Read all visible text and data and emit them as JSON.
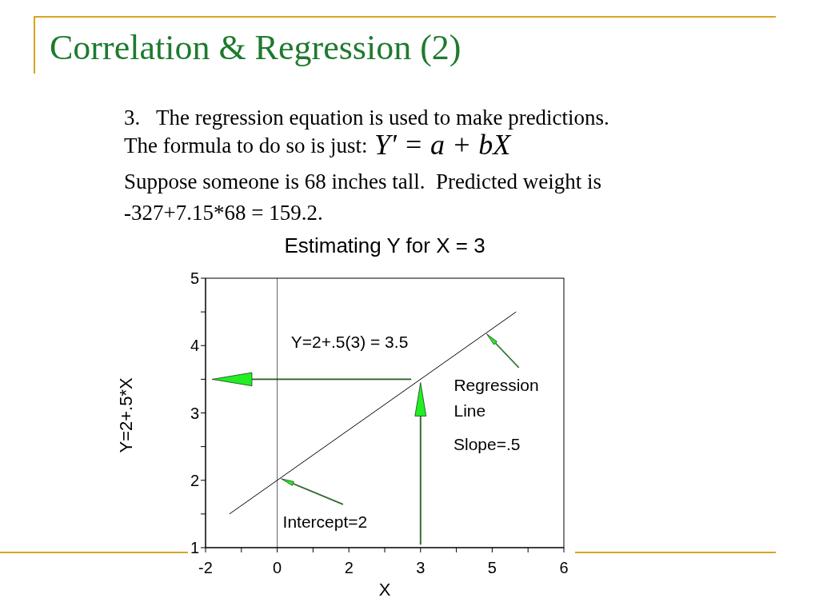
{
  "chart_data": {
    "type": "line",
    "title": "Estimating Y for X = 3",
    "xlabel": "X",
    "ylabel": "Y=2+.5*X",
    "x": [
      -1,
      5
    ],
    "series": [
      {
        "color": "#000000",
        "values": [
          1.5,
          4.5
        ]
      }
    ],
    "xlim": [
      -1.5,
      6
    ],
    "xticks": [
      {
        "value": -1.5,
        "label": "-2"
      },
      {
        "value": -0.75,
        "label": null
      },
      0,
      {
        "value": 0.75,
        "label": null
      },
      {
        "value": 1.5,
        "label": "2"
      },
      {
        "value": 2.25,
        "label": null
      },
      3,
      {
        "value": 3.75,
        "label": null
      },
      {
        "value": 4.5,
        "label": "5"
      },
      {
        "value": 5.25,
        "label": null
      },
      6
    ],
    "ylim": [
      1,
      5
    ],
    "yticks": [
      1,
      {
        "value": 1.5,
        "label": null
      },
      2,
      {
        "value": 2.5,
        "label": null
      },
      3,
      {
        "value": 3.5,
        "label": null
      },
      4,
      {
        "value": 4.5,
        "label": null
      },
      5
    ],
    "ref_lines": [
      {
        "axis": "x",
        "value": 0,
        "color": "#606060"
      }
    ],
    "marker": "none",
    "line_style": "solid",
    "annotations": [
      {
        "text": "Y=2+.5(3) = 3.5",
        "x": 3,
        "y": 3.5
      },
      {
        "text": "Regression Line",
        "x": 4.3,
        "y": 4.15
      },
      "Slope=.5",
      {
        "text": "Intercept=2",
        "x": 0,
        "y": 2
      },
      "Correlation & Regression (2)",
      "3.   The regression equation is used to make predictions.",
      "The formula to do so is just:",
      "Y' = a + bX",
      "Suppose someone is 68 inches tall.  Predicted weight is",
      "-327+7.15*68 = 159.2."
    ]
  }
}
